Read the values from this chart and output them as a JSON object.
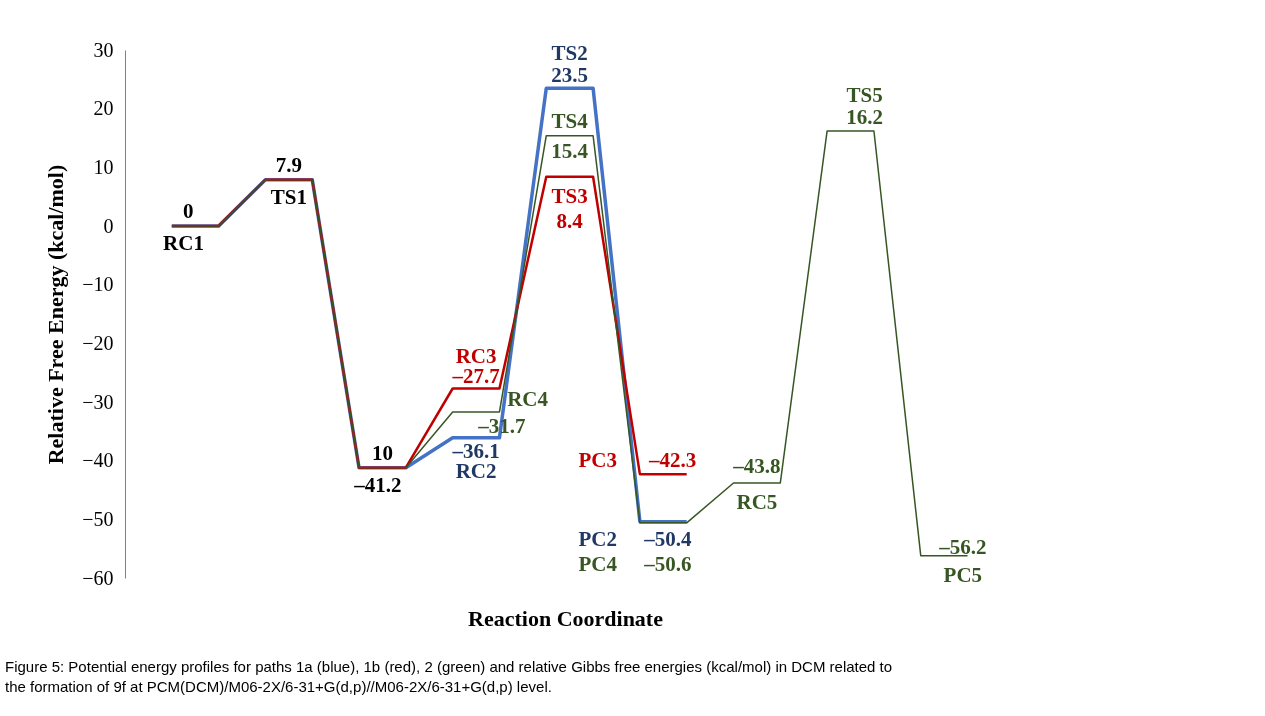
{
  "chart_data": {
    "type": "line",
    "xlabel": "Reaction Coordinate",
    "ylabel": "Relative Free Energy (kcal/mol)",
    "categories": [
      null,
      null,
      null,
      null,
      null,
      null,
      null,
      null,
      null,
      null,
      null,
      null,
      null,
      null,
      null,
      null,
      null,
      null
    ],
    "ylim": [
      -60,
      30
    ],
    "yticks": [
      -60,
      -50,
      -40,
      -30,
      -20,
      -10,
      0,
      10,
      20,
      30
    ],
    "marker": "none",
    "line_style": "solid",
    "series": [
      {
        "color": "#375623",
        "values": [
          0,
          0,
          7.9,
          7.9,
          -41.2,
          -41.2,
          -31.7,
          -31.7,
          15.4,
          15.4,
          -50.6,
          -50.6,
          -43.8,
          -43.8,
          16.2,
          16.2,
          -56.2,
          -56.2
        ],
        "value_labels": [
          null,
          null,
          null,
          null,
          null,
          null,
          "–31.7",
          null,
          "15.4",
          null,
          "–50.6",
          null,
          "–43.8",
          null,
          "16.2",
          null,
          "–56.2",
          null
        ]
      },
      {
        "color": "#c00000",
        "values": [
          0,
          0,
          7.9,
          7.9,
          -41.2,
          -41.2,
          -27.7,
          -27.7,
          8.4,
          8.4,
          -42.3,
          -42.3,
          null,
          null,
          null,
          null,
          null,
          null
        ],
        "value_labels": [
          null,
          null,
          null,
          null,
          null,
          null,
          "–27.7",
          null,
          "8.4",
          null,
          "–42.3",
          null,
          null,
          null,
          null,
          null,
          null,
          null
        ]
      },
      {
        "color": "#4472c4",
        "values": [
          0,
          0,
          7.9,
          7.9,
          -41.2,
          -41.2,
          -36.1,
          -36.1,
          23.5,
          23.5,
          -50.4,
          -50.4,
          null,
          null,
          null,
          null,
          null,
          null
        ],
        "value_labels": [
          "0",
          null,
          "7.9",
          null,
          "–41.2",
          null,
          "–36.1",
          null,
          "23.5",
          null,
          "–50.4",
          null,
          null,
          null,
          null,
          null,
          null,
          null
        ]
      }
    ],
    "annotations": [
      {
        "text": "RC1",
        "y": 0
      },
      {
        "text": "TS1",
        "y": 7.9
      },
      {
        "text": "10",
        "y": -41.2
      },
      {
        "text": "RC2",
        "y": -36.1
      },
      {
        "text": "RC3",
        "y": -27.7
      },
      "RC4",
      {
        "text": "TS2",
        "y": 23.5
      },
      {
        "text": "TS4",
        "y": 15.4
      },
      {
        "text": "TS3",
        "y": 8.4
      },
      "PC3",
      "PC2",
      "PC4",
      {
        "text": "RC5",
        "y": -43.8
      },
      {
        "text": "TS5",
        "y": 16.2
      },
      {
        "text": "PC5",
        "y": -56.2
      },
      "Figure 5: Potential energy profiles for paths 1a (blue), 1b (red), 2 (green) and relative Gibbs free energies (kcal/mol) in DCM related to the formation of 9f at PCM(DCM)/M06-2X/6-31+G(d,p)//M06-2X/6-31+G(d,p) level."
    ]
  }
}
